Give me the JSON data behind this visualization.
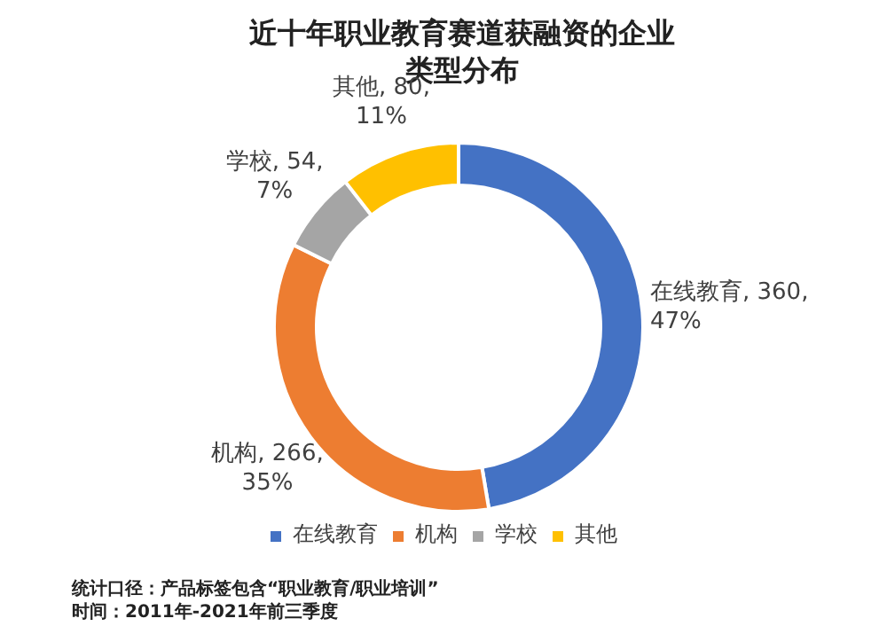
{
  "chart_data": {
    "type": "donut",
    "title": "近十年职业教育赛道获融资的企业类型分布",
    "categories": [
      "在线教育",
      "机构",
      "学校",
      "其他"
    ],
    "values": [
      360,
      266,
      54,
      80
    ],
    "colors": [
      "#4472c4",
      "#ed7d31",
      "#a5a5a5",
      "#ffc000"
    ],
    "value_labels": [
      "在线教育, 360,\n47%",
      "机构, 266,\n35%",
      "学校, 54,\n7%",
      "其他, 80,\n11%"
    ],
    "legend": "bottom",
    "annotations": [
      "统计口径：产品标签包含“职业教育/职业培训”",
      "时间：2011年-2021年前三季度"
    ]
  }
}
